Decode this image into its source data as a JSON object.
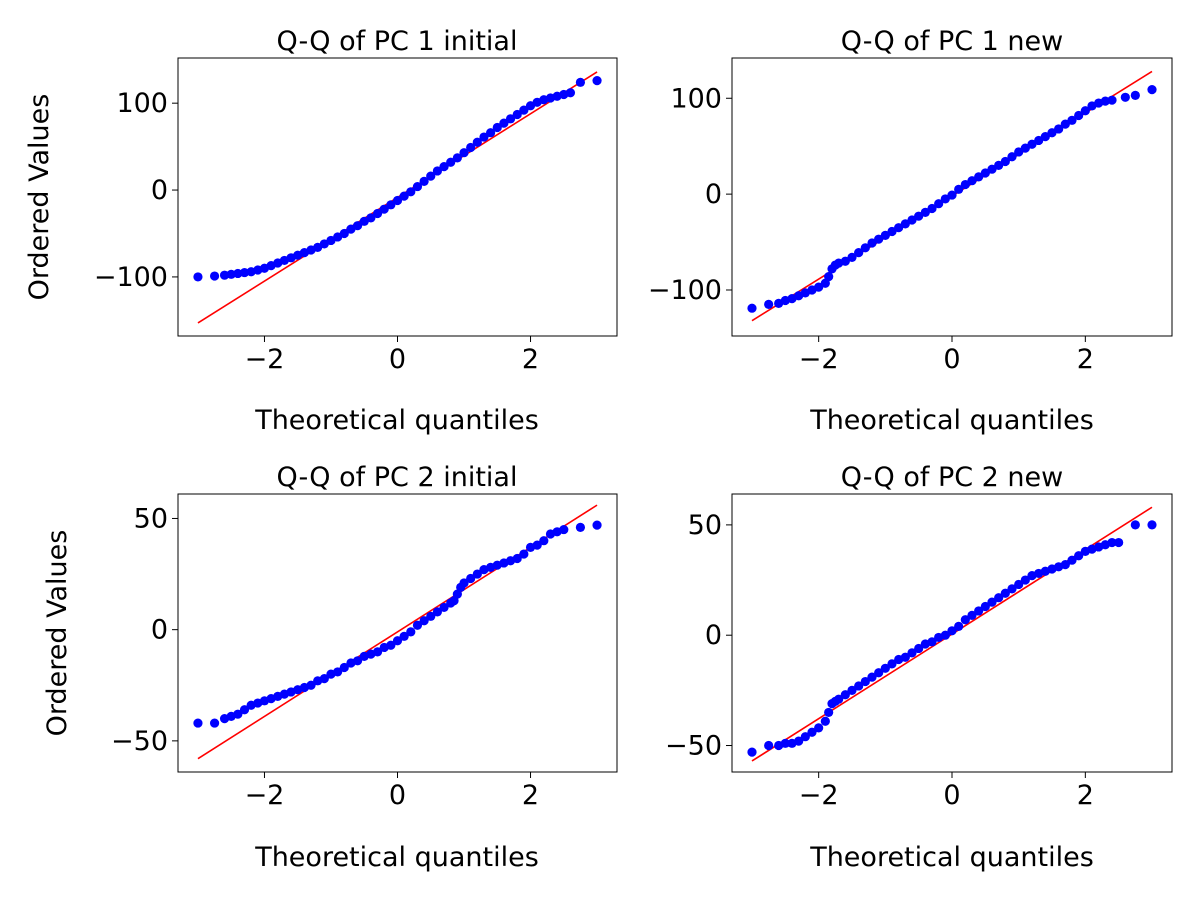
{
  "figure": {
    "colors": {
      "points": "#0000ff",
      "fit_line": "#ff0000",
      "frame": "#000000"
    }
  },
  "chart_data": [
    {
      "type": "scatter",
      "title": "Q-Q of PC 1 initial",
      "xlabel": "Theoretical quantiles",
      "ylabel": "Ordered Values",
      "xlim": [
        -3.3,
        3.3
      ],
      "ylim": [
        -168,
        152
      ],
      "xticks": [
        -2,
        0,
        2
      ],
      "xtick_labels": [
        "−2",
        "0",
        "2"
      ],
      "yticks": [
        -100,
        0,
        100
      ],
      "ytick_labels": [
        "−100",
        "0",
        "100"
      ],
      "grid": false,
      "series": [
        {
          "kind": "points",
          "color": "#0000ff",
          "x": [
            -3.0,
            -2.75,
            -2.6,
            -2.5,
            -2.4,
            -2.3,
            -2.2,
            -2.1,
            -2.0,
            -1.9,
            -1.8,
            -1.7,
            -1.6,
            -1.5,
            -1.4,
            -1.3,
            -1.2,
            -1.1,
            -1.0,
            -0.9,
            -0.8,
            -0.7,
            -0.6,
            -0.5,
            -0.4,
            -0.3,
            -0.2,
            -0.1,
            0.0,
            0.1,
            0.2,
            0.3,
            0.4,
            0.5,
            0.6,
            0.7,
            0.8,
            0.9,
            1.0,
            1.1,
            1.2,
            1.3,
            1.4,
            1.5,
            1.6,
            1.7,
            1.8,
            1.9,
            2.0,
            2.1,
            2.2,
            2.3,
            2.4,
            2.5,
            2.6,
            2.75,
            3.0
          ],
          "y": [
            -100,
            -99,
            -98,
            -97,
            -96,
            -95,
            -94,
            -92,
            -90,
            -87,
            -84,
            -81,
            -78,
            -75,
            -72,
            -69,
            -66,
            -62,
            -58,
            -54,
            -50,
            -45,
            -41,
            -36,
            -32,
            -27,
            -22,
            -17,
            -12,
            -7,
            -2,
            4,
            10,
            16,
            22,
            27,
            32,
            37,
            43,
            49,
            55,
            61,
            66,
            72,
            77,
            82,
            87,
            92,
            97,
            101,
            104,
            106,
            108,
            110,
            112,
            124,
            126
          ]
        },
        {
          "kind": "line",
          "color": "#ff0000",
          "x": [
            -3.0,
            3.0
          ],
          "y": [
            -153,
            136
          ]
        }
      ]
    },
    {
      "type": "scatter",
      "title": "Q-Q of PC 1 new",
      "xlabel": "Theoretical quantiles",
      "ylabel": "",
      "xlim": [
        -3.3,
        3.3
      ],
      "ylim": [
        -148,
        142
      ],
      "xticks": [
        -2,
        0,
        2
      ],
      "xtick_labels": [
        "−2",
        "0",
        "2"
      ],
      "yticks": [
        -100,
        0,
        100
      ],
      "ytick_labels": [
        "−100",
        "0",
        "100"
      ],
      "grid": false,
      "series": [
        {
          "kind": "points",
          "color": "#0000ff",
          "x": [
            -3.0,
            -2.75,
            -2.6,
            -2.5,
            -2.4,
            -2.3,
            -2.2,
            -2.1,
            -2.0,
            -1.9,
            -1.85,
            -1.8,
            -1.75,
            -1.7,
            -1.6,
            -1.5,
            -1.4,
            -1.3,
            -1.2,
            -1.1,
            -1.0,
            -0.9,
            -0.8,
            -0.7,
            -0.6,
            -0.5,
            -0.4,
            -0.3,
            -0.2,
            -0.1,
            0.0,
            0.1,
            0.2,
            0.3,
            0.4,
            0.5,
            0.6,
            0.7,
            0.8,
            0.9,
            1.0,
            1.1,
            1.2,
            1.3,
            1.4,
            1.5,
            1.6,
            1.7,
            1.8,
            1.9,
            2.0,
            2.1,
            2.2,
            2.3,
            2.4,
            2.6,
            2.75,
            3.0
          ],
          "y": [
            -119,
            -115,
            -114,
            -111,
            -109,
            -106,
            -103,
            -100,
            -97,
            -93,
            -86,
            -78,
            -74,
            -72,
            -70,
            -66,
            -61,
            -56,
            -51,
            -47,
            -43,
            -39,
            -35,
            -31,
            -27,
            -23,
            -19,
            -15,
            -10,
            -5,
            -1,
            5,
            10,
            14,
            18,
            22,
            26,
            30,
            34,
            39,
            44,
            48,
            52,
            56,
            60,
            64,
            68,
            73,
            77,
            82,
            87,
            92,
            95,
            97,
            98,
            101,
            103,
            109
          ]
        },
        {
          "kind": "line",
          "color": "#ff0000",
          "x": [
            -3.0,
            3.0
          ],
          "y": [
            -132,
            128
          ]
        }
      ]
    },
    {
      "type": "scatter",
      "title": "Q-Q of PC 2 initial",
      "xlabel": "Theoretical quantiles",
      "ylabel": "Ordered Values",
      "xlim": [
        -3.3,
        3.3
      ],
      "ylim": [
        -64,
        61
      ],
      "xticks": [
        -2,
        0,
        2
      ],
      "xtick_labels": [
        "−2",
        "0",
        "2"
      ],
      "yticks": [
        -50,
        0,
        50
      ],
      "ytick_labels": [
        "−50",
        "0",
        "50"
      ],
      "grid": false,
      "series": [
        {
          "kind": "points",
          "color": "#0000ff",
          "x": [
            -3.0,
            -2.75,
            -2.6,
            -2.5,
            -2.4,
            -2.3,
            -2.2,
            -2.1,
            -2.0,
            -1.9,
            -1.8,
            -1.7,
            -1.6,
            -1.5,
            -1.4,
            -1.3,
            -1.2,
            -1.1,
            -1.0,
            -0.9,
            -0.8,
            -0.7,
            -0.6,
            -0.5,
            -0.4,
            -0.3,
            -0.2,
            -0.1,
            0.0,
            0.1,
            0.2,
            0.3,
            0.4,
            0.5,
            0.6,
            0.7,
            0.8,
            0.85,
            0.9,
            0.95,
            1.0,
            1.1,
            1.2,
            1.3,
            1.4,
            1.5,
            1.6,
            1.7,
            1.8,
            1.9,
            2.0,
            2.1,
            2.2,
            2.3,
            2.4,
            2.5,
            2.75,
            3.0
          ],
          "y": [
            -42,
            -42,
            -40,
            -39,
            -38,
            -36,
            -34,
            -33,
            -32,
            -31,
            -30,
            -29,
            -28,
            -27,
            -26,
            -25,
            -23,
            -22,
            -20,
            -19,
            -17,
            -15,
            -14,
            -12,
            -11,
            -10,
            -8,
            -7,
            -5,
            -3,
            -1,
            2,
            4,
            6,
            8,
            10,
            12,
            13,
            16,
            19,
            21,
            23,
            25,
            27,
            28,
            29,
            30,
            31,
            32,
            34,
            37,
            38,
            40,
            43,
            44,
            45,
            46,
            47
          ]
        },
        {
          "kind": "line",
          "color": "#ff0000",
          "x": [
            -3.0,
            3.0
          ],
          "y": [
            -58,
            56
          ]
        }
      ]
    },
    {
      "type": "scatter",
      "title": "Q-Q of PC 2 new",
      "xlabel": "Theoretical quantiles",
      "ylabel": "",
      "xlim": [
        -3.3,
        3.3
      ],
      "ylim": [
        -62,
        64
      ],
      "xticks": [
        -2,
        0,
        2
      ],
      "xtick_labels": [
        "−2",
        "0",
        "2"
      ],
      "yticks": [
        -50,
        0,
        50
      ],
      "ytick_labels": [
        "−50",
        "0",
        "50"
      ],
      "grid": false,
      "series": [
        {
          "kind": "points",
          "color": "#0000ff",
          "x": [
            -3.0,
            -2.75,
            -2.6,
            -2.5,
            -2.4,
            -2.3,
            -2.2,
            -2.1,
            -2.0,
            -1.9,
            -1.85,
            -1.8,
            -1.75,
            -1.7,
            -1.6,
            -1.5,
            -1.4,
            -1.3,
            -1.2,
            -1.1,
            -1.0,
            -0.9,
            -0.8,
            -0.7,
            -0.6,
            -0.5,
            -0.4,
            -0.3,
            -0.2,
            -0.1,
            0.0,
            0.1,
            0.2,
            0.3,
            0.4,
            0.5,
            0.6,
            0.7,
            0.8,
            0.9,
            1.0,
            1.1,
            1.2,
            1.3,
            1.4,
            1.5,
            1.6,
            1.7,
            1.8,
            1.9,
            2.0,
            2.1,
            2.2,
            2.3,
            2.4,
            2.5,
            2.75,
            3.0
          ],
          "y": [
            -53,
            -50,
            -50,
            -49,
            -49,
            -48,
            -46,
            -44,
            -42,
            -39,
            -35,
            -31,
            -30,
            -29,
            -27,
            -25,
            -23,
            -21,
            -19,
            -17,
            -15,
            -13,
            -11,
            -10,
            -8,
            -6,
            -4,
            -3,
            -1,
            0,
            2,
            4,
            7,
            9,
            11,
            13,
            15,
            17,
            19,
            21,
            23,
            25,
            27,
            28,
            29,
            30,
            31,
            32,
            34,
            36,
            38,
            39,
            40,
            41,
            42,
            42,
            50,
            50
          ]
        },
        {
          "kind": "line",
          "color": "#ff0000",
          "x": [
            -3.0,
            3.0
          ],
          "y": [
            -57,
            58
          ]
        }
      ]
    }
  ]
}
